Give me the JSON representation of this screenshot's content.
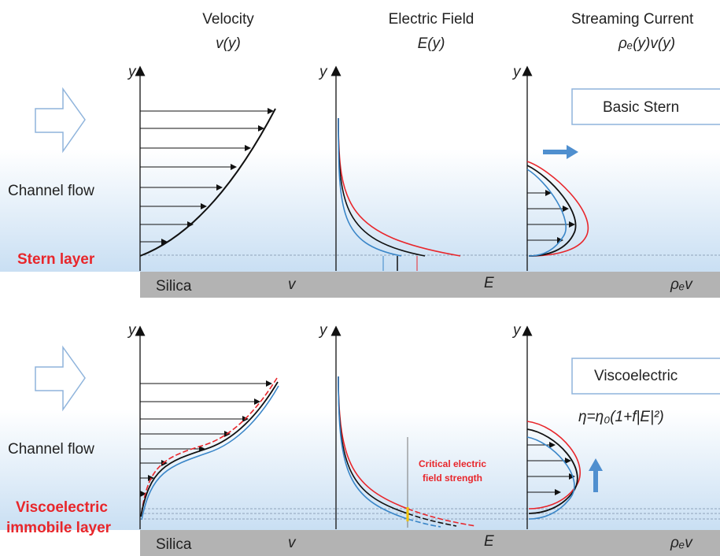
{
  "header": {
    "columns": [
      {
        "title": "Velocity",
        "subtitle": "v(y)"
      },
      {
        "title": "Electric Field",
        "subtitle": "E(y)"
      },
      {
        "title": "Streaming Current",
        "subtitle": "ρₑ(y)v(y)"
      }
    ]
  },
  "panels": [
    {
      "flow_label": "Channel flow",
      "layer_label": [
        "Stern layer"
      ],
      "substrate": "Silica",
      "y_labels": [
        "y",
        "y",
        "y"
      ],
      "x_labels": [
        "v",
        "E",
        "ρₑv"
      ],
      "model": "Basic Stern"
    },
    {
      "flow_label": "Channel flow",
      "layer_label": [
        "Viscoelectric",
        "immobile layer"
      ],
      "substrate": "Silica",
      "y_labels": [
        "y",
        "y",
        "y"
      ],
      "x_labels": [
        "v",
        "E",
        "ρₑv"
      ],
      "model": "Viscoelectric",
      "equation": "η=η₀(1+f|E|²)",
      "annotation": [
        "Critical electric",
        "field strength"
      ]
    }
  ]
}
